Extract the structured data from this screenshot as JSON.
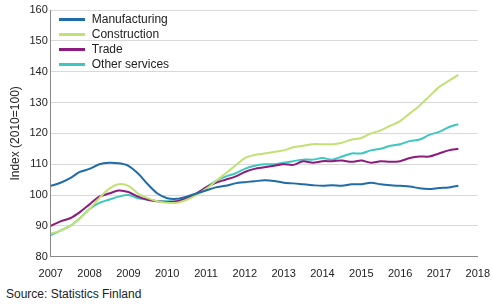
{
  "chart_data": {
    "type": "line",
    "y_label": "Index (2010=100)",
    "annotations": [
      "Source: Statistics Finland"
    ],
    "x": [
      2007,
      2007.25,
      2007.5,
      2007.75,
      2008,
      2008.25,
      2008.5,
      2008.75,
      2009,
      2009.25,
      2009.5,
      2009.75,
      2010,
      2010.25,
      2010.5,
      2010.75,
      2011,
      2011.25,
      2011.5,
      2011.75,
      2012,
      2012.25,
      2012.5,
      2012.75,
      2013,
      2013.25,
      2013.5,
      2013.75,
      2014,
      2014.25,
      2014.5,
      2014.75,
      2015,
      2015.25,
      2015.5,
      2015.75,
      2016,
      2016.25,
      2016.5,
      2016.75,
      2017,
      2017.25,
      2017.5
    ],
    "series": [
      {
        "name": "Manufacturing",
        "color": "#1f6ca8",
        "values": [
          103,
          104,
          105.5,
          107.5,
          108.5,
          110,
          110.5,
          110.3,
          109.5,
          107,
          103.5,
          100.5,
          99,
          98.8,
          99.5,
          100.5,
          101.5,
          102.5,
          103,
          103.8,
          104.2,
          104.5,
          104.8,
          104.6,
          104,
          103.8,
          103.5,
          103.2,
          103,
          103.2,
          103,
          103.5,
          103.5,
          104,
          103.5,
          103.2,
          103,
          102.8,
          102.2,
          102,
          102.3,
          102.5,
          103
        ]
      },
      {
        "name": "Construction",
        "color": "#c2e174",
        "values": [
          87.5,
          88.5,
          90,
          92.5,
          95.5,
          99,
          102,
          103.5,
          103,
          100.5,
          99,
          98,
          97.5,
          97.5,
          98.5,
          100,
          102,
          104.5,
          107,
          109.5,
          112,
          113,
          113.5,
          114,
          114.5,
          115.5,
          116,
          116.5,
          116.5,
          116.5,
          117,
          118,
          118.5,
          120,
          121,
          122.5,
          124,
          126.5,
          129,
          132,
          135,
          137,
          139
        ]
      },
      {
        "name": "Trade",
        "color": "#8c1b7d",
        "values": [
          90,
          91.5,
          92.5,
          94.5,
          97,
          99.5,
          100.5,
          101.5,
          101,
          99.5,
          98.5,
          98,
          97.8,
          98,
          99,
          100.5,
          102.5,
          104,
          105,
          106,
          107.5,
          108.5,
          109,
          109.5,
          110,
          109.8,
          111,
          110.5,
          111,
          111,
          111.2,
          110.8,
          111.2,
          110.5,
          111,
          110.8,
          111,
          112,
          112.5,
          112.5,
          113.5,
          114.5,
          115
        ]
      },
      {
        "name": "Other services",
        "color": "#3fc6c0",
        "values": [
          87,
          88.5,
          90,
          92.5,
          95.5,
          97.5,
          98.5,
          99.5,
          100,
          99,
          98.5,
          98,
          98,
          98,
          99,
          100.5,
          102.5,
          104.5,
          106,
          107,
          108.5,
          109.5,
          110,
          110,
          110.5,
          111,
          111.5,
          111.5,
          112,
          111.5,
          112.5,
          113.5,
          113.5,
          114.5,
          115,
          116,
          116.5,
          117.5,
          118,
          119.5,
          120.5,
          122,
          123
        ]
      }
    ],
    "xlim": [
      2007,
      2018
    ],
    "xticks": [
      2007,
      2008,
      2009,
      2010,
      2011,
      2012,
      2013,
      2014,
      2015,
      2016,
      2017,
      2018
    ],
    "ylim": [
      80,
      160
    ],
    "yticks": [
      80,
      90,
      100,
      110,
      120,
      130,
      140,
      150,
      160
    ],
    "grid": "y",
    "legend": "upper left"
  }
}
